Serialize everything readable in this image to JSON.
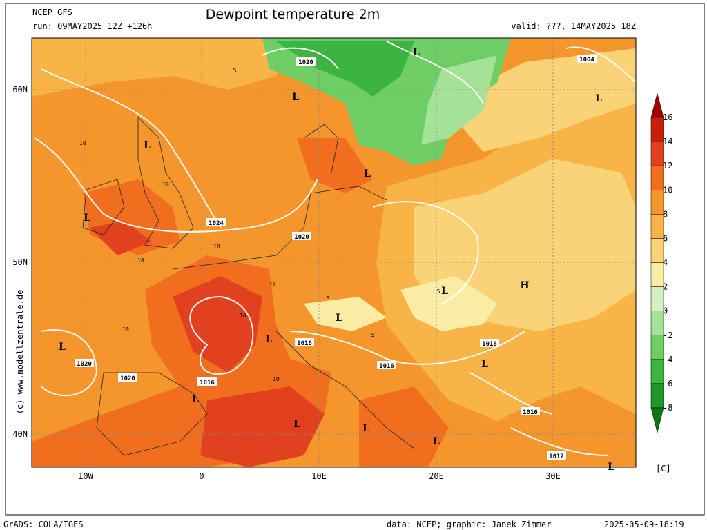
{
  "header": {
    "model": "NCEP GFS",
    "run": "run: 09MAY2025 12Z +126h",
    "title": "Dewpoint temperature 2m",
    "valid": "valid: ???, 14MAY2025 18Z"
  },
  "map": {
    "lat_labels": [
      "60N",
      "50N",
      "40N"
    ],
    "lon_labels": [
      "10W",
      "0",
      "10E",
      "20E",
      "30E"
    ],
    "pressure_labels": [
      "1020",
      "1004",
      "1024",
      "1020",
      "1020",
      "1020",
      "1016",
      "1016",
      "1016",
      "1016",
      "1016",
      "1012"
    ],
    "centers": [
      "L",
      "L",
      "L",
      "L",
      "L",
      "L",
      "L",
      "L",
      "L",
      "L",
      "L",
      "L",
      "L",
      "L",
      "L",
      "L",
      "H"
    ],
    "contour_labels": [
      "5",
      "10",
      "10",
      "10",
      "10",
      "10",
      "5",
      "5",
      "10",
      "10",
      "5",
      "10"
    ]
  },
  "colorbar": {
    "levels": [
      "16",
      "14",
      "12",
      "10",
      "8",
      "6",
      "4",
      "2",
      "0",
      "-2",
      "-4",
      "-6",
      "-8"
    ],
    "colors": [
      "#a00000",
      "#c81e0a",
      "#e1411e",
      "#f06e1e",
      "#f5962d",
      "#f8b446",
      "#fad278",
      "#fbeca5",
      "#d2f0c3",
      "#a5e196",
      "#6ecd64",
      "#3cb441",
      "#1e9628",
      "#0a7814"
    ],
    "unit": "[C]"
  },
  "side_text": "(c) www.modellzentrale.de",
  "footer": {
    "left": "GrADS: COLA/IGES",
    "credit": "data: NCEP; graphic: Janek Zimmer",
    "timestamp": "2025-05-09-18:19"
  }
}
